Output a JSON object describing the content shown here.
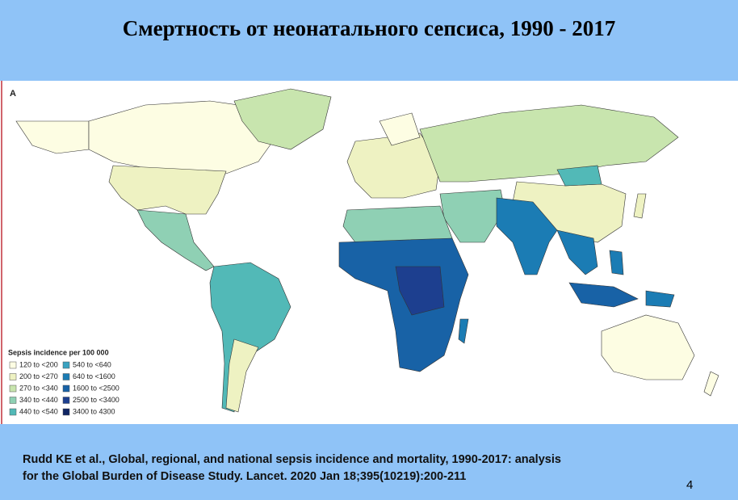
{
  "header": {
    "title": "Смертность от неонатального сепсиса, 1990 - 2017"
  },
  "panel": {
    "label": "A",
    "legend": {
      "title": "Sepsis incidence per 100 000",
      "items": [
        {
          "label": "120 to <200",
          "color": "#fdfde3"
        },
        {
          "label": "200 to <270",
          "color": "#eef2c2"
        },
        {
          "label": "270 to <340",
          "color": "#c8e5ae"
        },
        {
          "label": "340 to <440",
          "color": "#8fd0b4"
        },
        {
          "label": "440 to <540",
          "color": "#52b9b7"
        },
        {
          "label": "540 to <640",
          "color": "#3aa2c0"
        },
        {
          "label": "640 to <1600",
          "color": "#1b7cb4"
        },
        {
          "label": "1600 to <2500",
          "color": "#1862a6"
        },
        {
          "label": "2500 to <3400",
          "color": "#1d3f8f"
        },
        {
          "label": "3400 to 4300",
          "color": "#0f2563"
        }
      ]
    }
  },
  "footer": {
    "citation": [
      "Rudd KE et al., Global, regional, and national sepsis incidence and mortality, 1990-2017: analysis",
      "for the Global Burden of Disease Study. Lancet. 2020 Jan 18;395(10219):200-211"
    ],
    "page_number": "4"
  }
}
